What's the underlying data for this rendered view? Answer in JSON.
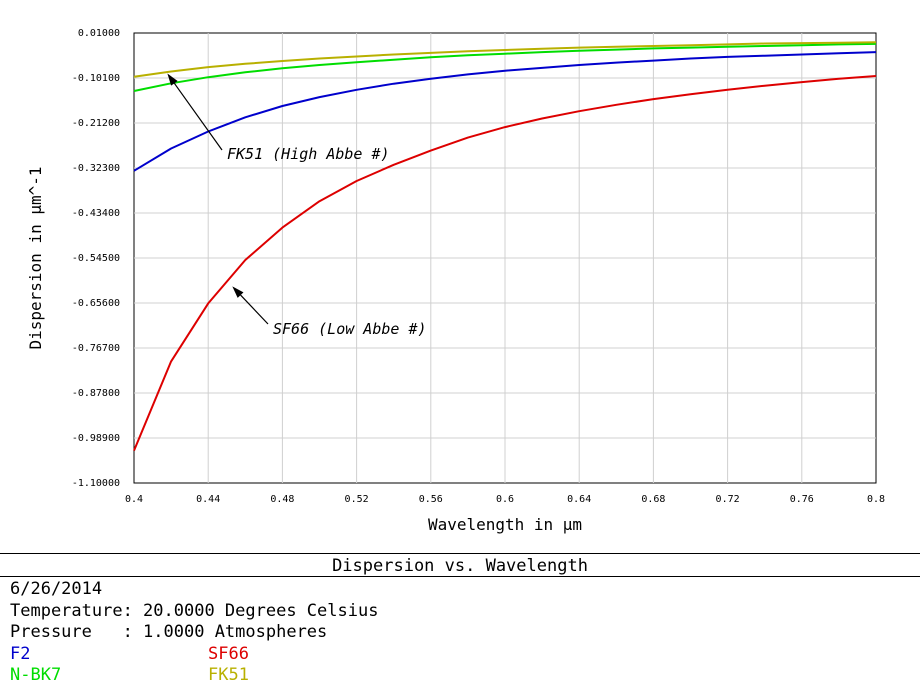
{
  "chart_data": {
    "type": "line",
    "title": "Dispersion vs. Wavelength",
    "xlabel": "Wavelength in µm",
    "ylabel": "Dispersion in µm^-1",
    "xlim": [
      0.4,
      0.8
    ],
    "ylim": [
      -1.1,
      0.01
    ],
    "x_ticks": [
      "0.4",
      "0.44",
      "0.48",
      "0.52",
      "0.56",
      "0.6",
      "0.64",
      "0.68",
      "0.72",
      "0.76",
      "0.8"
    ],
    "y_ticks": [
      "0.01000",
      "-0.10100",
      "-0.21200",
      "-0.32300",
      "-0.43400",
      "-0.54500",
      "-0.65600",
      "-0.76700",
      "-0.87800",
      "-0.98900",
      "-1.10000"
    ],
    "grid": true,
    "x": [
      0.4,
      0.42,
      0.44,
      0.46,
      0.48,
      0.5,
      0.52,
      0.54,
      0.56,
      0.58,
      0.6,
      0.62,
      0.64,
      0.66,
      0.68,
      0.7,
      0.72,
      0.74,
      0.76,
      0.78,
      0.8
    ],
    "series": [
      {
        "name": "F2",
        "color": "#0000cc",
        "values": [
          -0.33,
          -0.275,
          -0.233,
          -0.198,
          -0.17,
          -0.148,
          -0.13,
          -0.115,
          -0.103,
          -0.092,
          -0.083,
          -0.076,
          -0.069,
          -0.063,
          -0.058,
          -0.053,
          -0.049,
          -0.046,
          -0.043,
          -0.04,
          -0.037
        ]
      },
      {
        "name": "SF66",
        "color": "#dd0000",
        "values": [
          -1.02,
          -0.8,
          -0.657,
          -0.55,
          -0.47,
          -0.405,
          -0.355,
          -0.315,
          -0.28,
          -0.248,
          -0.222,
          -0.201,
          -0.183,
          -0.167,
          -0.153,
          -0.141,
          -0.13,
          -0.12,
          -0.111,
          -0.103,
          -0.096
        ]
      },
      {
        "name": "N-BK7",
        "color": "#00dd00",
        "values": [
          -0.133,
          -0.114,
          -0.099,
          -0.087,
          -0.077,
          -0.069,
          -0.062,
          -0.056,
          -0.05,
          -0.045,
          -0.041,
          -0.037,
          -0.034,
          -0.031,
          -0.028,
          -0.026,
          -0.024,
          -0.022,
          -0.02,
          -0.018,
          -0.017
        ]
      },
      {
        "name": "FK51",
        "color": "#b8b000",
        "values": [
          -0.098,
          -0.085,
          -0.074,
          -0.066,
          -0.059,
          -0.053,
          -0.048,
          -0.043,
          -0.039,
          -0.035,
          -0.032,
          -0.029,
          -0.026,
          -0.024,
          -0.022,
          -0.02,
          -0.018,
          -0.016,
          -0.015,
          -0.014,
          -0.013
        ]
      }
    ],
    "annotations": [
      {
        "text": "FK51 (High Abbe #)",
        "target": [
          0.418,
          -0.09
        ]
      },
      {
        "text": "SF66 (Low Abbe #)",
        "target": [
          0.453,
          -0.615
        ]
      }
    ]
  },
  "footer": {
    "title": "Dispersion vs. Wavelength",
    "date": "6/26/2014",
    "temperature": "Temperature: 20.0000 Degrees Celsius",
    "pressure": "Pressure   : 1.0000 Atmospheres"
  }
}
